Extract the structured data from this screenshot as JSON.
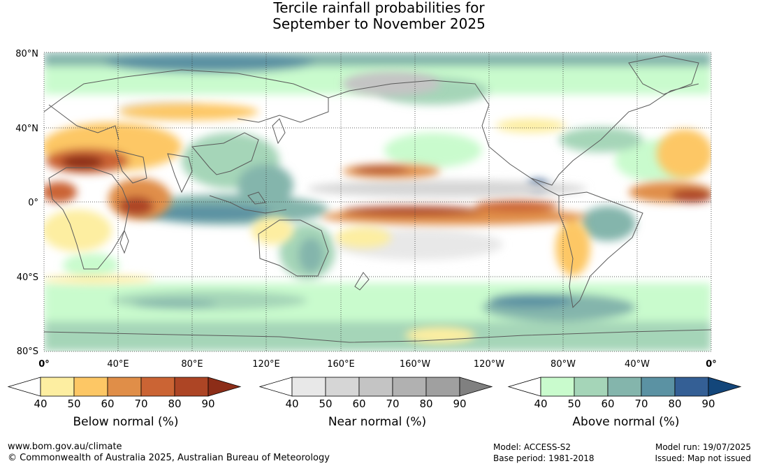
{
  "title": {
    "line1": "Tercile rainfall probabilities for",
    "line2": "September to November 2025"
  },
  "map": {
    "lat_labels": [
      "80°N",
      "40°N",
      "0°",
      "40°S",
      "80°S"
    ],
    "lon_labels": [
      "0°",
      "40°E",
      "80°E",
      "120°E",
      "160°E",
      "160°W",
      "120°W",
      "80°W",
      "40°W",
      "0°"
    ]
  },
  "colorbars": [
    {
      "name": "below",
      "label": "Below normal (%)",
      "ticks": [
        "40",
        "50",
        "60",
        "70",
        "80",
        "90"
      ],
      "colors": [
        "#ffffff",
        "#fdeea1",
        "#fdc765",
        "#e08e48",
        "#cb6434",
        "#ad4525",
        "#8c2d18"
      ]
    },
    {
      "name": "near",
      "label": "Near normal (%)",
      "ticks": [
        "40",
        "50",
        "60",
        "70",
        "80",
        "90"
      ],
      "colors": [
        "#ffffff",
        "#e8e8e8",
        "#d6d6d6",
        "#c4c4c4",
        "#b1b1b1",
        "#a0a0a0",
        "#808080"
      ]
    },
    {
      "name": "above",
      "label": "Above normal (%)",
      "ticks": [
        "40",
        "50",
        "60",
        "70",
        "80",
        "90"
      ],
      "colors": [
        "#ffffff",
        "#c9fbcd",
        "#a5d5b8",
        "#84b5ac",
        "#5b92a3",
        "#345f95",
        "#13467a"
      ]
    }
  ],
  "footer": {
    "website": "www.bom.gov.au/climate",
    "copyright": "© Commonwealth of Australia 2025, Australian Bureau of Meteorology",
    "model": "Model: ACCESS-S2",
    "base_period": "Base period: 1981-2018",
    "model_run": "Model run: 19/07/2025",
    "issued": "Issued: Map not issued"
  }
}
